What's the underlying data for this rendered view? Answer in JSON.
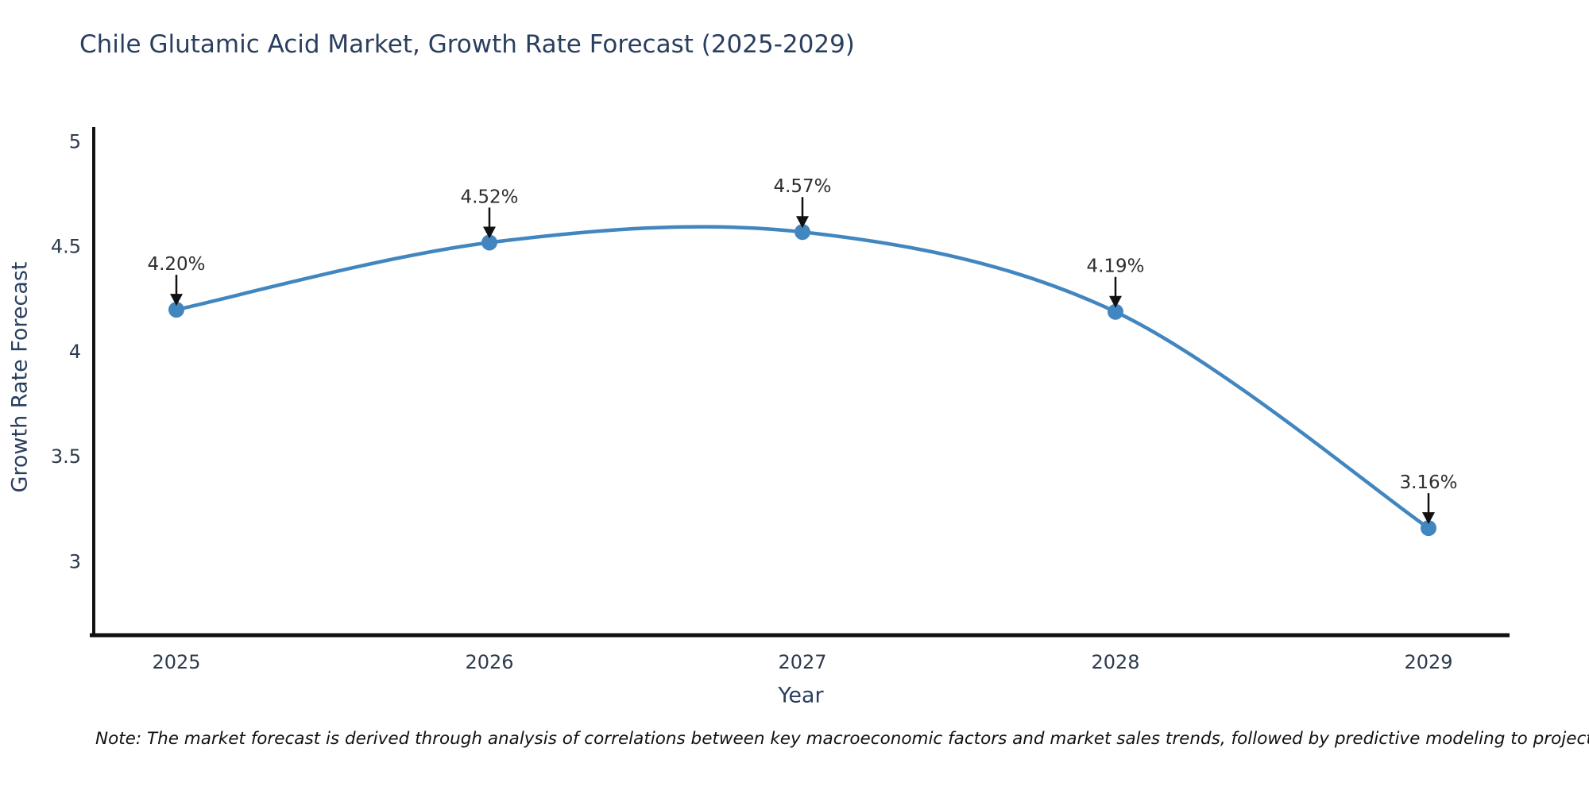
{
  "chart_data": {
    "type": "line",
    "title": "Chile Glutamic Acid Market, Growth Rate Forecast (2025-2029)",
    "xlabel": "Year",
    "ylabel": "Growth Rate Forecast",
    "x": [
      2025,
      2026,
      2027,
      2028,
      2029
    ],
    "values": [
      4.2,
      4.52,
      4.57,
      4.19,
      3.16
    ],
    "point_labels": [
      "4.20%",
      "4.52%",
      "4.57%",
      "4.19%",
      "3.16%"
    ],
    "yticks": [
      3,
      3.5,
      4,
      4.5,
      5
    ],
    "ytick_labels": [
      "3",
      "3.5",
      "4",
      "4.5",
      "5"
    ],
    "ylim": [
      2.65,
      5.07
    ],
    "grid": false,
    "legend": false,
    "smooth_spline": true,
    "colors": {
      "line": "#4286c0",
      "marker": "#4286c0",
      "axis": "#111111",
      "title": "#2a3f5f",
      "tick": "#2e3a4e",
      "annotation": "#2d2d2d",
      "arrow": "#111111",
      "background": "#ffffff"
    },
    "note": "Note: The market forecast is derived through analysis of correlations between key macroeconomic factors and market sales trends, followed by predictive modeling to project future sales"
  }
}
